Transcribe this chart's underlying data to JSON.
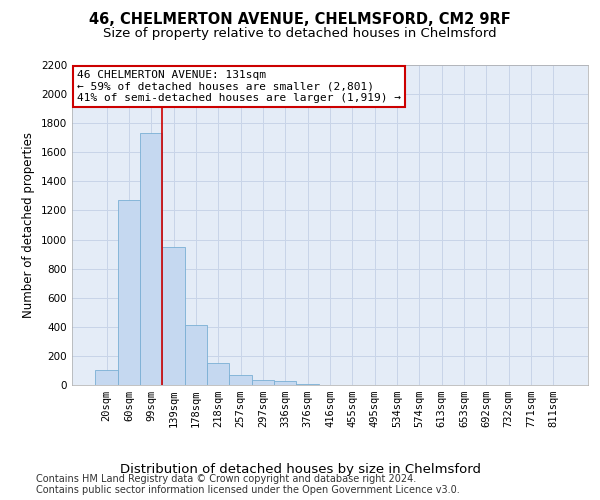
{
  "title": "46, CHELMERTON AVENUE, CHELMSFORD, CM2 9RF",
  "subtitle": "Size of property relative to detached houses in Chelmsford",
  "xlabel": "Distribution of detached houses by size in Chelmsford",
  "ylabel": "Number of detached properties",
  "categories": [
    "20sqm",
    "60sqm",
    "99sqm",
    "139sqm",
    "178sqm",
    "218sqm",
    "257sqm",
    "297sqm",
    "336sqm",
    "376sqm",
    "416sqm",
    "455sqm",
    "495sqm",
    "534sqm",
    "574sqm",
    "613sqm",
    "653sqm",
    "692sqm",
    "732sqm",
    "771sqm",
    "811sqm"
  ],
  "values": [
    100,
    1270,
    1730,
    950,
    410,
    150,
    70,
    35,
    25,
    5,
    2,
    1,
    0,
    0,
    0,
    0,
    0,
    0,
    0,
    0,
    0
  ],
  "bar_color": "#c5d8f0",
  "bar_edge_color": "#7aafd4",
  "bar_linewidth": 0.6,
  "grid_color": "#c8d4e8",
  "bg_color": "#e4ecf7",
  "ylim": [
    0,
    2200
  ],
  "yticks": [
    0,
    200,
    400,
    600,
    800,
    1000,
    1200,
    1400,
    1600,
    1800,
    2000,
    2200
  ],
  "vline_x": 2.5,
  "vline_color": "#cc0000",
  "annotation_text": "46 CHELMERTON AVENUE: 131sqm\n← 59% of detached houses are smaller (2,801)\n41% of semi-detached houses are larger (1,919) →",
  "annotation_box_color": "#ffffff",
  "annotation_border_color": "#cc0000",
  "footnote_line1": "Contains HM Land Registry data © Crown copyright and database right 2024.",
  "footnote_line2": "Contains public sector information licensed under the Open Government Licence v3.0.",
  "title_fontsize": 10.5,
  "subtitle_fontsize": 9.5,
  "xlabel_fontsize": 9.5,
  "ylabel_fontsize": 8.5,
  "tick_fontsize": 7.5,
  "annotation_fontsize": 8,
  "footnote_fontsize": 7
}
